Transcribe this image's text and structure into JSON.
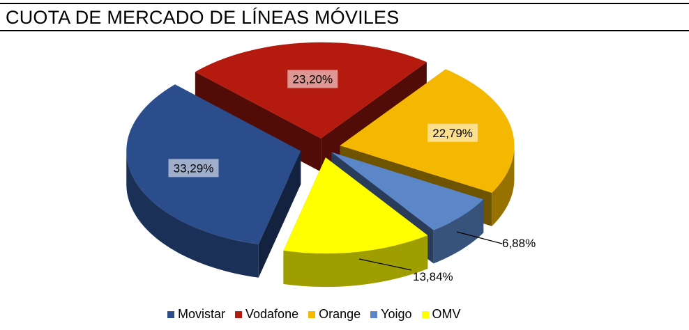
{
  "header": {
    "title": "CUOTA DE MERCADO DE LÍNEAS MÓVILES"
  },
  "chart_data": {
    "type": "pie",
    "title": "CUOTA DE MERCADO DE LÍNEAS MÓVILES",
    "categories": [
      "Movistar",
      "Vodafone",
      "Orange",
      "Yoigo",
      "OMV"
    ],
    "values": [
      33.29,
      23.2,
      22.79,
      6.88,
      13.84
    ],
    "labels": [
      "33,29%",
      "23,20%",
      "22,79%",
      "6,88%",
      "13,84%"
    ],
    "colors": [
      "#2b4d8c",
      "#b51a0f",
      "#f5b800",
      "#5b86c7",
      "#ffff00"
    ],
    "exploded": true,
    "three_d": true,
    "legend_position": "bottom"
  }
}
